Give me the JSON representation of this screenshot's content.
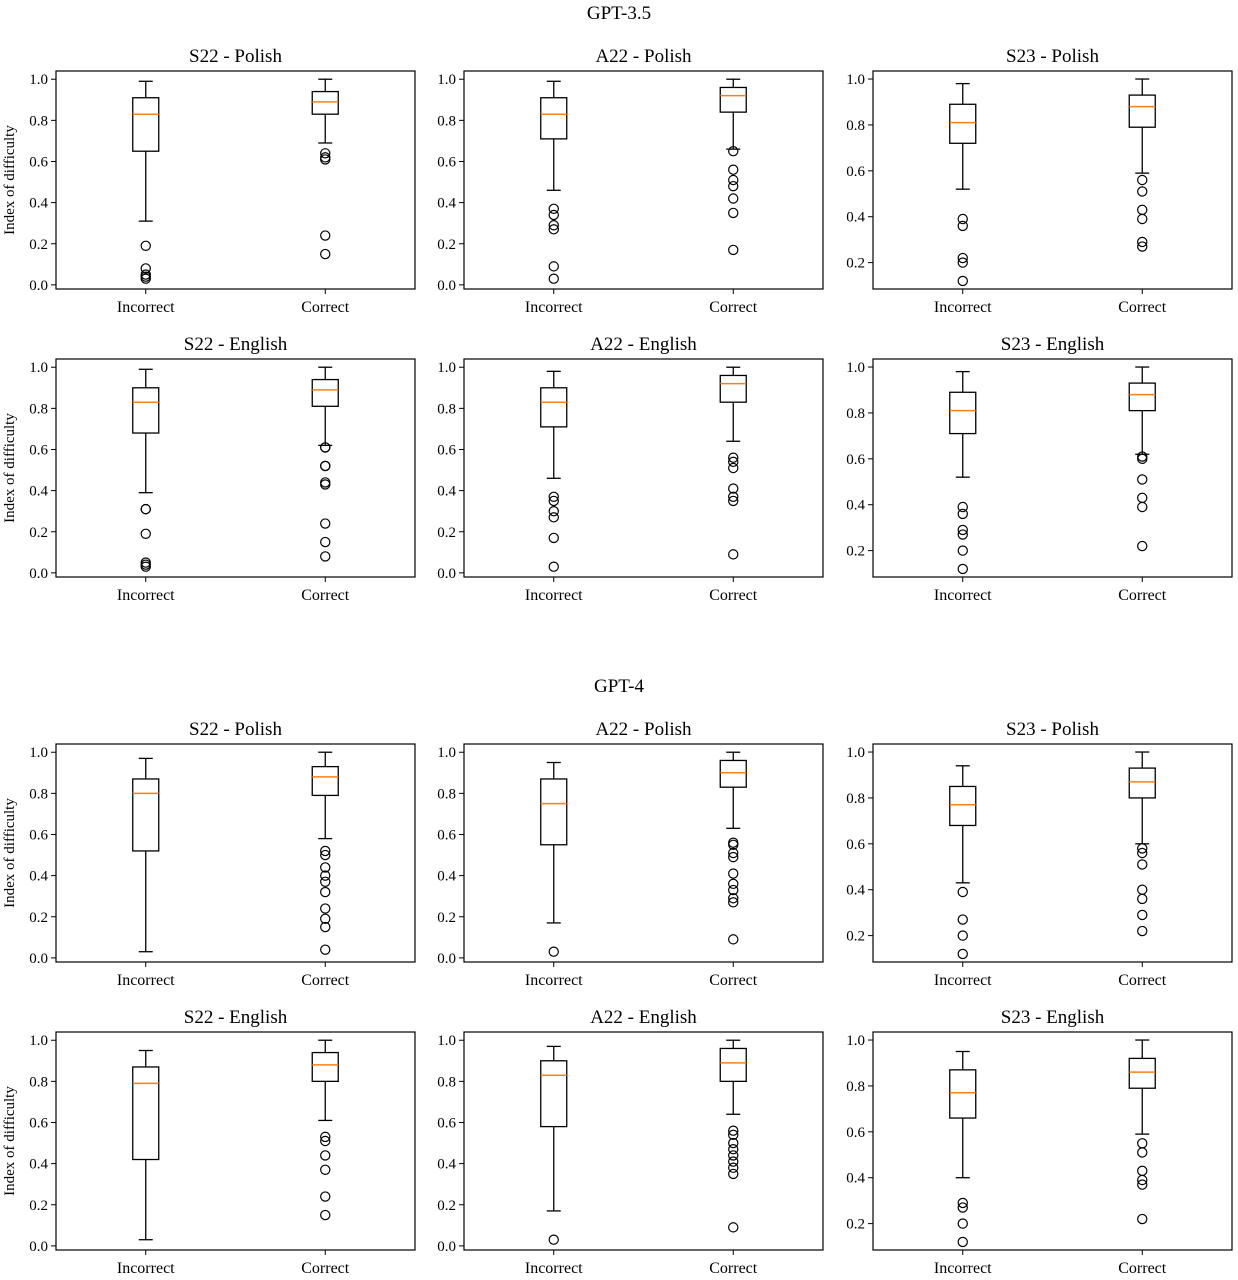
{
  "groups": [
    {
      "title": "GPT-3.5"
    },
    {
      "title": "GPT-4"
    }
  ],
  "style": {
    "box_color": "#000000",
    "median_color": "#ff7f0e",
    "flier_color": "#000000",
    "background": "#ffffff"
  },
  "chart_data": [
    {
      "type": "boxplot",
      "group": "GPT-3.5",
      "title": "S22 - Polish",
      "ylabel": "Index of difficulty",
      "ylim": [
        -0.02,
        1.04
      ],
      "yticks": [
        0.0,
        0.2,
        0.4,
        0.6,
        0.8,
        1.0
      ],
      "ytick_labels": [
        "0.0",
        "0.2",
        "0.4",
        "0.6",
        "0.8",
        "1.0"
      ],
      "categories": [
        "Incorrect",
        "Correct"
      ],
      "boxes": [
        {
          "whislo": 0.31,
          "q1": 0.65,
          "med": 0.83,
          "q3": 0.91,
          "whishi": 0.99,
          "fliers": [
            0.19,
            0.08,
            0.05,
            0.04,
            0.03
          ]
        },
        {
          "whislo": 0.69,
          "q1": 0.83,
          "med": 0.89,
          "q3": 0.94,
          "whishi": 1.0,
          "fliers": [
            0.64,
            0.62,
            0.61,
            0.24,
            0.15
          ]
        }
      ]
    },
    {
      "type": "boxplot",
      "group": "GPT-3.5",
      "title": "A22 - Polish",
      "ylabel": "",
      "ylim": [
        -0.02,
        1.04
      ],
      "yticks": [
        0.0,
        0.2,
        0.4,
        0.6,
        0.8,
        1.0
      ],
      "ytick_labels": [
        "0.0",
        "0.2",
        "0.4",
        "0.6",
        "0.8",
        "1.0"
      ],
      "categories": [
        "Incorrect",
        "Correct"
      ],
      "boxes": [
        {
          "whislo": 0.46,
          "q1": 0.71,
          "med": 0.83,
          "q3": 0.91,
          "whishi": 0.99,
          "fliers": [
            0.37,
            0.34,
            0.29,
            0.27,
            0.09,
            0.03
          ]
        },
        {
          "whislo": 0.66,
          "q1": 0.84,
          "med": 0.92,
          "q3": 0.96,
          "whishi": 1.0,
          "fliers": [
            0.65,
            0.56,
            0.51,
            0.48,
            0.42,
            0.35,
            0.17
          ]
        }
      ]
    },
    {
      "type": "boxplot",
      "group": "GPT-3.5",
      "title": "S23 - Polish",
      "ylabel": "",
      "ylim": [
        0.085,
        1.035
      ],
      "yticks": [
        0.2,
        0.4,
        0.6,
        0.8,
        1.0
      ],
      "ytick_labels": [
        "0.2",
        "0.4",
        "0.6",
        "0.8",
        "1.0"
      ],
      "categories": [
        "Incorrect",
        "Correct"
      ],
      "boxes": [
        {
          "whislo": 0.52,
          "q1": 0.72,
          "med": 0.81,
          "q3": 0.89,
          "whishi": 0.98,
          "fliers": [
            0.39,
            0.36,
            0.22,
            0.2,
            0.12
          ]
        },
        {
          "whislo": 0.59,
          "q1": 0.79,
          "med": 0.88,
          "q3": 0.93,
          "whishi": 1.0,
          "fliers": [
            0.56,
            0.51,
            0.43,
            0.39,
            0.29,
            0.27
          ]
        }
      ]
    },
    {
      "type": "boxplot",
      "group": "GPT-3.5",
      "title": "S22 - English",
      "ylabel": "Index of difficulty",
      "ylim": [
        -0.02,
        1.04
      ],
      "yticks": [
        0.0,
        0.2,
        0.4,
        0.6,
        0.8,
        1.0
      ],
      "ytick_labels": [
        "0.0",
        "0.2",
        "0.4",
        "0.6",
        "0.8",
        "1.0"
      ],
      "categories": [
        "Incorrect",
        "Correct"
      ],
      "boxes": [
        {
          "whislo": 0.39,
          "q1": 0.68,
          "med": 0.83,
          "q3": 0.9,
          "whishi": 0.99,
          "fliers": [
            0.31,
            0.31,
            0.19,
            0.05,
            0.04,
            0.03
          ]
        },
        {
          "whislo": 0.62,
          "q1": 0.81,
          "med": 0.89,
          "q3": 0.94,
          "whishi": 1.0,
          "fliers": [
            0.61,
            0.61,
            0.52,
            0.52,
            0.44,
            0.43,
            0.24,
            0.15,
            0.08
          ]
        }
      ]
    },
    {
      "type": "boxplot",
      "group": "GPT-3.5",
      "title": "A22 - English",
      "ylabel": "",
      "ylim": [
        -0.02,
        1.04
      ],
      "yticks": [
        0.0,
        0.2,
        0.4,
        0.6,
        0.8,
        1.0
      ],
      "ytick_labels": [
        "0.0",
        "0.2",
        "0.4",
        "0.6",
        "0.8",
        "1.0"
      ],
      "categories": [
        "Incorrect",
        "Correct"
      ],
      "boxes": [
        {
          "whislo": 0.46,
          "q1": 0.71,
          "med": 0.83,
          "q3": 0.9,
          "whishi": 0.98,
          "fliers": [
            0.37,
            0.35,
            0.3,
            0.27,
            0.17,
            0.03
          ]
        },
        {
          "whislo": 0.64,
          "q1": 0.83,
          "med": 0.92,
          "q3": 0.96,
          "whishi": 1.0,
          "fliers": [
            0.56,
            0.54,
            0.51,
            0.41,
            0.37,
            0.35,
            0.09
          ]
        }
      ]
    },
    {
      "type": "boxplot",
      "group": "GPT-3.5",
      "title": "S23 - English",
      "ylabel": "",
      "ylim": [
        0.085,
        1.035
      ],
      "yticks": [
        0.2,
        0.4,
        0.6,
        0.8,
        1.0
      ],
      "ytick_labels": [
        "0.2",
        "0.4",
        "0.6",
        "0.8",
        "1.0"
      ],
      "categories": [
        "Incorrect",
        "Correct"
      ],
      "boxes": [
        {
          "whislo": 0.52,
          "q1": 0.71,
          "med": 0.81,
          "q3": 0.89,
          "whishi": 0.98,
          "fliers": [
            0.39,
            0.36,
            0.29,
            0.27,
            0.2,
            0.12
          ]
        },
        {
          "whislo": 0.62,
          "q1": 0.81,
          "med": 0.88,
          "q3": 0.93,
          "whishi": 1.0,
          "fliers": [
            0.61,
            0.6,
            0.51,
            0.43,
            0.39,
            0.22
          ]
        }
      ]
    },
    {
      "type": "boxplot",
      "group": "GPT-4",
      "title": "S22 - Polish",
      "ylabel": "Index of difficulty",
      "ylim": [
        -0.02,
        1.04
      ],
      "yticks": [
        0.0,
        0.2,
        0.4,
        0.6,
        0.8,
        1.0
      ],
      "ytick_labels": [
        "0.0",
        "0.2",
        "0.4",
        "0.6",
        "0.8",
        "1.0"
      ],
      "categories": [
        "Incorrect",
        "Correct"
      ],
      "boxes": [
        {
          "whislo": 0.03,
          "q1": 0.52,
          "med": 0.8,
          "q3": 0.87,
          "whishi": 0.97,
          "fliers": []
        },
        {
          "whislo": 0.58,
          "q1": 0.79,
          "med": 0.88,
          "q3": 0.93,
          "whishi": 1.0,
          "fliers": [
            0.52,
            0.5,
            0.44,
            0.4,
            0.37,
            0.32,
            0.24,
            0.19,
            0.15,
            0.04
          ]
        }
      ]
    },
    {
      "type": "boxplot",
      "group": "GPT-4",
      "title": "A22 - Polish",
      "ylabel": "",
      "ylim": [
        -0.02,
        1.04
      ],
      "yticks": [
        0.0,
        0.2,
        0.4,
        0.6,
        0.8,
        1.0
      ],
      "ytick_labels": [
        "0.0",
        "0.2",
        "0.4",
        "0.6",
        "0.8",
        "1.0"
      ],
      "categories": [
        "Incorrect",
        "Correct"
      ],
      "boxes": [
        {
          "whislo": 0.17,
          "q1": 0.55,
          "med": 0.75,
          "q3": 0.87,
          "whishi": 0.95,
          "fliers": [
            0.03
          ]
        },
        {
          "whislo": 0.63,
          "q1": 0.83,
          "med": 0.9,
          "q3": 0.96,
          "whishi": 1.0,
          "fliers": [
            0.56,
            0.55,
            0.51,
            0.49,
            0.41,
            0.36,
            0.33,
            0.29,
            0.27,
            0.09
          ]
        }
      ]
    },
    {
      "type": "boxplot",
      "group": "GPT-4",
      "title": "S23 - Polish",
      "ylabel": "",
      "ylim": [
        0.085,
        1.035
      ],
      "yticks": [
        0.2,
        0.4,
        0.6,
        0.8,
        1.0
      ],
      "ytick_labels": [
        "0.2",
        "0.4",
        "0.6",
        "0.8",
        "1.0"
      ],
      "categories": [
        "Incorrect",
        "Correct"
      ],
      "boxes": [
        {
          "whislo": 0.43,
          "q1": 0.68,
          "med": 0.77,
          "q3": 0.85,
          "whishi": 0.94,
          "fliers": [
            0.39,
            0.27,
            0.2,
            0.12
          ]
        },
        {
          "whislo": 0.6,
          "q1": 0.8,
          "med": 0.87,
          "q3": 0.93,
          "whishi": 1.0,
          "fliers": [
            0.58,
            0.56,
            0.51,
            0.4,
            0.36,
            0.29,
            0.22
          ]
        }
      ]
    },
    {
      "type": "boxplot",
      "group": "GPT-4",
      "title": "S22 - English",
      "ylabel": "Index of difficulty",
      "ylim": [
        -0.02,
        1.04
      ],
      "yticks": [
        0.0,
        0.2,
        0.4,
        0.6,
        0.8,
        1.0
      ],
      "ytick_labels": [
        "0.0",
        "0.2",
        "0.4",
        "0.6",
        "0.8",
        "1.0"
      ],
      "categories": [
        "Incorrect",
        "Correct"
      ],
      "boxes": [
        {
          "whislo": 0.03,
          "q1": 0.42,
          "med": 0.79,
          "q3": 0.87,
          "whishi": 0.95,
          "fliers": []
        },
        {
          "whislo": 0.61,
          "q1": 0.8,
          "med": 0.88,
          "q3": 0.94,
          "whishi": 1.0,
          "fliers": [
            0.53,
            0.51,
            0.44,
            0.37,
            0.24,
            0.15
          ]
        }
      ]
    },
    {
      "type": "boxplot",
      "group": "GPT-4",
      "title": "A22 - English",
      "ylabel": "",
      "ylim": [
        -0.02,
        1.04
      ],
      "yticks": [
        0.0,
        0.2,
        0.4,
        0.6,
        0.8,
        1.0
      ],
      "ytick_labels": [
        "0.0",
        "0.2",
        "0.4",
        "0.6",
        "0.8",
        "1.0"
      ],
      "categories": [
        "Incorrect",
        "Correct"
      ],
      "boxes": [
        {
          "whislo": 0.17,
          "q1": 0.58,
          "med": 0.83,
          "q3": 0.9,
          "whishi": 0.97,
          "fliers": [
            0.03
          ]
        },
        {
          "whislo": 0.64,
          "q1": 0.8,
          "med": 0.89,
          "q3": 0.96,
          "whishi": 1.0,
          "fliers": [
            0.56,
            0.54,
            0.5,
            0.47,
            0.44,
            0.41,
            0.38,
            0.35,
            0.09
          ]
        }
      ]
    },
    {
      "type": "boxplot",
      "group": "GPT-4",
      "title": "S23 - English",
      "ylabel": "",
      "ylim": [
        0.085,
        1.035
      ],
      "yticks": [
        0.2,
        0.4,
        0.6,
        0.8,
        1.0
      ],
      "ytick_labels": [
        "0.2",
        "0.4",
        "0.6",
        "0.8",
        "1.0"
      ],
      "categories": [
        "Incorrect",
        "Correct"
      ],
      "boxes": [
        {
          "whislo": 0.4,
          "q1": 0.66,
          "med": 0.77,
          "q3": 0.87,
          "whishi": 0.95,
          "fliers": [
            0.29,
            0.27,
            0.2,
            0.12
          ]
        },
        {
          "whislo": 0.59,
          "q1": 0.79,
          "med": 0.86,
          "q3": 0.92,
          "whishi": 1.0,
          "fliers": [
            0.55,
            0.51,
            0.43,
            0.39,
            0.37,
            0.22
          ]
        }
      ]
    }
  ]
}
